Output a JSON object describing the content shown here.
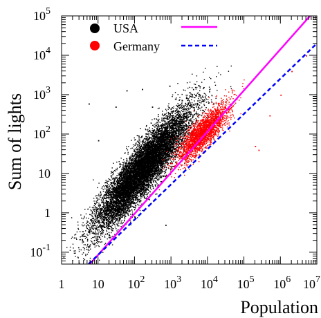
{
  "chart_data": {
    "type": "scatter",
    "title": "",
    "xlabel": "Population",
    "ylabel": "Sum of lights",
    "x_scale": "log",
    "y_scale": "log",
    "xlim": [
      1,
      10000000
    ],
    "ylim": [
      0.05,
      100000
    ],
    "x_tick_labels": [
      {
        "value": 1,
        "base": "1",
        "exp": ""
      },
      {
        "value": 10,
        "base": "10",
        "exp": ""
      },
      {
        "value": 100,
        "base": "10",
        "exp": "2"
      },
      {
        "value": 1000,
        "base": "10",
        "exp": "3"
      },
      {
        "value": 10000,
        "base": "10",
        "exp": "4"
      },
      {
        "value": 100000,
        "base": "10",
        "exp": "5"
      },
      {
        "value": 1000000,
        "base": "10",
        "exp": "6"
      },
      {
        "value": 10000000,
        "base": "10",
        "exp": "7"
      }
    ],
    "y_tick_labels": [
      {
        "value": 0.1,
        "base": "10",
        "exp": "-1"
      },
      {
        "value": 1,
        "base": "1",
        "exp": ""
      },
      {
        "value": 10,
        "base": "10",
        "exp": ""
      },
      {
        "value": 100,
        "base": "10",
        "exp": "2"
      },
      {
        "value": 1000,
        "base": "10",
        "exp": "3"
      },
      {
        "value": 10000,
        "base": "10",
        "exp": "4"
      },
      {
        "value": 100000,
        "base": "10",
        "exp": "5"
      }
    ],
    "legend_position": "top-left",
    "series": [
      {
        "name": "USA",
        "kind": "points",
        "color": "#000000",
        "point_count_approx": 11000,
        "trend": {
          "center_log10_pop": 2.2,
          "spread_log10_pop": 0.65,
          "slope": 1.05,
          "intercept_log10": -1.2,
          "scatter_log10": 0.33
        }
      },
      {
        "name": "Germany",
        "kind": "points",
        "color": "#ff0000",
        "point_count_approx": 2500,
        "trend": {
          "center_log10_pop": 3.85,
          "spread_log10_pop": 0.35,
          "slope": 0.85,
          "intercept_log10": -1.25,
          "scatter_log10": 0.2
        }
      }
    ],
    "fits": [
      {
        "series": "USA",
        "color": "#ff00ff",
        "style": "solid",
        "points": [
          [
            6,
            0.05
          ],
          [
            6500000,
            100000
          ]
        ]
      },
      {
        "series": "Germany",
        "color": "#0000ff",
        "style": "dashed",
        "points": [
          [
            5.5,
            0.05
          ],
          [
            10000000,
            20000
          ]
        ]
      }
    ],
    "notable_points": [
      {
        "series": "USA",
        "x": 5.5,
        "y": 600
      },
      {
        "series": "USA",
        "x": 30,
        "y": 500
      },
      {
        "series": "USA",
        "x": 60,
        "y": 1300
      },
      {
        "series": "USA",
        "x": 160,
        "y": 1400
      },
      {
        "series": "USA",
        "x": 900,
        "y": 1700
      },
      {
        "series": "USA",
        "x": 10,
        "y": 70
      },
      {
        "series": "USA",
        "x": 300,
        "y": 500
      },
      {
        "series": "USA",
        "x": 100,
        "y": 0.8
      },
      {
        "series": "USA",
        "x": 700,
        "y": 0.5
      },
      {
        "series": "Germany",
        "x": 200000,
        "y": 50
      },
      {
        "series": "Germany",
        "x": 500000,
        "y": 300
      },
      {
        "series": "Germany",
        "x": 1000000,
        "y": 1000
      },
      {
        "series": "Germany",
        "x": 2000000,
        "y": 4000
      },
      {
        "series": "Germany",
        "x": 5000000,
        "y": 10000
      },
      {
        "series": "Germany",
        "x": 250000,
        "y": 40
      }
    ]
  }
}
